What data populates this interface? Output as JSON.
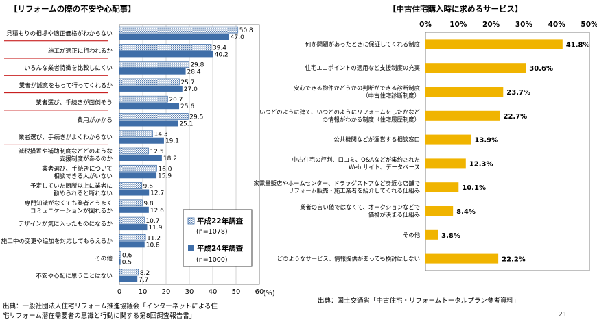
{
  "chart_data": [
    {
      "type": "bar",
      "orientation": "horizontal",
      "title": "【リフォームの際の不安や心配事】",
      "categories": [
        "見積もりの相場や適正価格がわからない",
        "施工が適正に行われるか",
        "いろんな業者特徴を比較しにくい",
        "業者が誠意をもって行ってくれるか",
        "業者選び、手続きが面倒そう",
        "費用がかかる",
        "業者選び、手続きがよくわからない",
        "減税措置や補助制度などどのような 支援制度があるのか",
        "業者選び、手続きについて 相談できる人がいない",
        "予定していた箇所以上に業者に 勧められると断れない",
        "専門知識がなくても業者とうまく コミュニケーションが図れるか",
        "デザインが気に入ったものになるか",
        "施工中の変更や追加を対応してもらえるか",
        "その他",
        "不安や心配に思うことはない"
      ],
      "series": [
        {
          "name": "平成22年調査",
          "note": "(n=1078)",
          "color": "#f2f2f2",
          "pattern": "dots",
          "values": [
            50.8,
            39.4,
            29.8,
            25.7,
            20.7,
            29.5,
            14.3,
            12.5,
            16.0,
            9.6,
            9.8,
            10.7,
            11.2,
            0.6,
            8.2
          ]
        },
        {
          "name": "平成24年調査",
          "note": "(n=1000)",
          "color": "#3f6ea8",
          "values": [
            47.0,
            40.2,
            28.4,
            27.0,
            25.6,
            25.1,
            19.1,
            18.2,
            15.9,
            12.7,
            12.6,
            11.9,
            10.8,
            0.5,
            7.7
          ]
        }
      ],
      "value_labels": [
        [
          "50.8",
          "39.4",
          "29.8",
          "25.7",
          "20.7",
          "29.5",
          "14.3",
          "12.5",
          "16.0",
          "9.6",
          "9.8",
          "10.7",
          "11.2",
          "0.6",
          "8.2"
        ],
        [
          "47.0",
          "40.2",
          "28.4",
          "27.0",
          "25.6",
          "25.1",
          "19.1",
          "18.2",
          "15.9",
          "12.7",
          "12.6",
          "11.9",
          "10.8",
          "0.5",
          "7.7"
        ]
      ],
      "xlim": [
        0,
        60
      ],
      "xticks": [
        "0",
        "10",
        "20",
        "30",
        "40",
        "50",
        "60"
      ],
      "xunit": "(%)",
      "highlighted_categories": [
        0,
        1,
        2,
        3,
        4,
        6
      ],
      "source": "出典：一般社団法人住宅リフォーム推進協議会「インターネットによる住宅リフォーム潜在需要者の意識と行動に関する第8回調査報告書」",
      "source_lines": [
        "出典：一般社団法人住宅リフォーム推進協議会「インターネットによる住",
        "宅リフォーム潜在需要者の意識と行動に関する第8回調査報告書」"
      ]
    },
    {
      "type": "bar",
      "orientation": "horizontal",
      "title": "【中古住宅購入時に求めるサービス】",
      "categories": [
        "何か問題があったときに保証してくれる制度",
        "住宅エコポイントの適用など支援制度の充実",
        "安心できる物件かどうかの判断ができる診断制度 （中古住宅診断制度）",
        "いつどのように建て、いつどのようにリフォームをしたかなど の情報がわかる制度（住宅履歴制度）",
        "公共機関などが運営する相談窓口",
        "中古住宅の評判、口コミ、Q&Aなどが集約された Web サイト、データベース",
        "家電量販店やホームセンター、ドラッグストアなど身近な店舗で リフォーム販売・施工業者を紹介してくれる仕組み",
        "業者の言い値ではなくて、オークションなどで 価格が決まる仕組み",
        "その他",
        "どのようなサービス、情報提供があっても検討はしない"
      ],
      "values": [
        41.8,
        30.6,
        23.7,
        22.7,
        13.9,
        12.3,
        10.1,
        8.4,
        3.8,
        22.2
      ],
      "value_labels": [
        "41.8%",
        "30.6%",
        "23.7%",
        "22.7%",
        "13.9%",
        "12.3%",
        "10.1%",
        "8.4%",
        "3.8%",
        "22.2%"
      ],
      "color": "#f0b400",
      "xlim": [
        0,
        50
      ],
      "xticks": [
        "0%",
        "10%",
        "20%",
        "30%",
        "40%",
        "50%"
      ],
      "source": "出典：国土交通省「中古住宅・リフォームトータルプラン参考資料」"
    }
  ],
  "page": {
    "number": "21"
  }
}
